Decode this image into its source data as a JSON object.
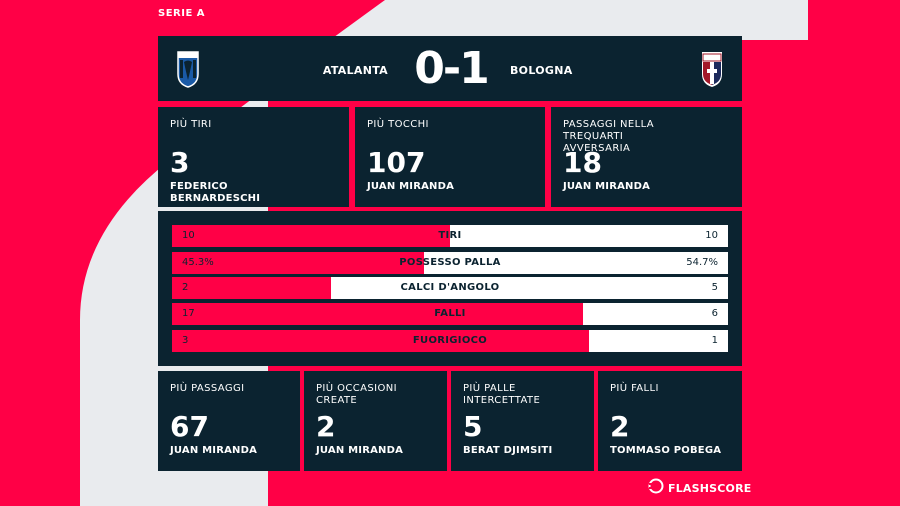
{
  "league": "SERIE A",
  "match": {
    "home_team": "ATALANTA",
    "away_team": "BOLOGNA",
    "score": "0-1"
  },
  "top_stats": [
    {
      "label": "PIÙ TIRI",
      "value": "3",
      "player": "FEDERICO BERNARDESCHI"
    },
    {
      "label": "PIÙ TOCCHI",
      "value": "107",
      "player": "JUAN MIRANDA"
    },
    {
      "label": "PASSAGGI NELLA TREQUARTI AVVERSARIA",
      "value": "18",
      "player": "JUAN MIRANDA"
    }
  ],
  "comparison": [
    {
      "name": "TIRI",
      "home": "10",
      "away": "10",
      "home_share": 0.5
    },
    {
      "name": "POSSESSO PALLA",
      "home": "45.3%",
      "away": "54.7%",
      "home_share": 0.453
    },
    {
      "name": "CALCI D'ANGOLO",
      "home": "2",
      "away": "5",
      "home_share": 0.2857
    },
    {
      "name": "FALLI",
      "home": "17",
      "away": "6",
      "home_share": 0.739
    },
    {
      "name": "FUORIGIOCO",
      "home": "3",
      "away": "1",
      "home_share": 0.75
    }
  ],
  "bottom_stats": [
    {
      "label": "PIÙ PASSAGGI",
      "value": "67",
      "player": "JUAN MIRANDA"
    },
    {
      "label": "PIÙ OCCASIONI CREATE",
      "value": "2",
      "player": "JUAN MIRANDA"
    },
    {
      "label": "PIÙ PALLE INTERCETTATE",
      "value": "5",
      "player": "BERAT DJIMSITI"
    },
    {
      "label": "PIÙ FALLI",
      "value": "2",
      "player": "TOMMASO POBEGA"
    }
  ],
  "brand": {
    "name": "FLASHSCORE",
    "icon": "flashscore-logo-icon"
  },
  "colors": {
    "accent": "#ff0046",
    "panel": "#0b2330",
    "background": "#e9ebee"
  }
}
